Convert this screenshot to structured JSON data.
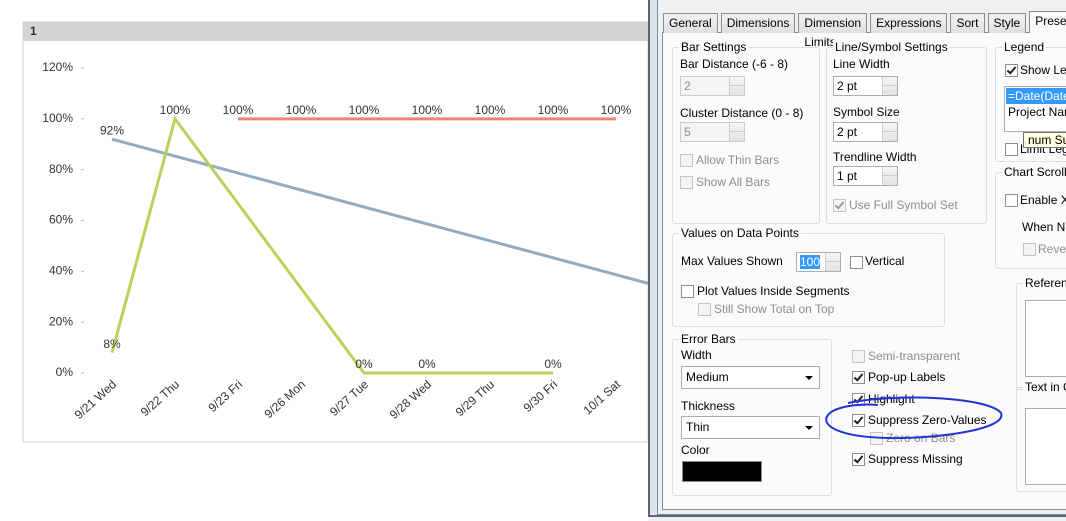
{
  "chart_data": {
    "type": "line",
    "title": "1",
    "categories": [
      "9/21 Wed",
      "9/22 Thu",
      "9/23 Fri",
      "9/26 Mon",
      "9/27 Tue",
      "9/28 Wed",
      "9/29 Thu",
      "9/30 Fri",
      "10/1 Sat",
      null
    ],
    "series": [
      {
        "color": "#f08278",
        "values": [
          null,
          null,
          100,
          100,
          100,
          100,
          100,
          100,
          100,
          null
        ],
        "value_labels": [
          null,
          null,
          "100%",
          "100%",
          "100%",
          "100%",
          "100%",
          "100%",
          "100%",
          null
        ]
      },
      {
        "color": "#93aac3",
        "values": [
          92,
          null,
          null,
          null,
          null,
          null,
          null,
          null,
          null,
          32
        ],
        "value_labels": [
          "92%",
          null,
          null,
          null,
          null,
          null,
          null,
          null,
          null,
          null
        ]
      },
      {
        "color": "#b9d35a",
        "values": [
          8,
          100,
          null,
          null,
          0,
          0,
          null,
          0,
          null,
          null
        ],
        "value_labels": [
          "8%",
          "100%",
          null,
          null,
          "0%",
          "0%",
          null,
          "0%",
          null,
          null
        ]
      }
    ],
    "ylim": [
      0,
      120
    ],
    "yticks": [
      {
        "value": 0,
        "label": "0%"
      },
      {
        "value": 20,
        "label": "20%"
      },
      {
        "value": 40,
        "label": "40%"
      },
      {
        "value": 60,
        "label": "60%"
      },
      {
        "value": 80,
        "label": "80%"
      },
      {
        "value": 100,
        "label": "100%"
      },
      {
        "value": 120,
        "label": "120%"
      }
    ],
    "grid": false
  },
  "dialog": {
    "tabs": [
      "General",
      "Dimensions",
      "Dimension Limits",
      "Expressions",
      "Sort",
      "Style",
      "Presenta"
    ],
    "bar_settings": {
      "title": "Bar Settings",
      "bar_distance_label": "Bar Distance (-6 - 8)",
      "bar_distance": "2",
      "cluster_distance_label": "Cluster Distance (0 - 8)",
      "cluster_distance": "5",
      "allow_thin_bars": "Allow Thin Bars",
      "show_all_bars": "Show All Bars"
    },
    "line_symbol": {
      "title": "Line/Symbol Settings",
      "line_width_label": "Line Width",
      "line_width": "2 pt",
      "symbol_size_label": "Symbol Size",
      "symbol_size": "2 pt",
      "trendline_width_label": "Trendline Width",
      "trendline_width": "1 pt",
      "use_full_symbol_set": "Use Full Symbol Set"
    },
    "legend": {
      "title": "Legend",
      "show_legend": "Show Leg",
      "items": [
        "=Date(Date,",
        "Project Nam"
      ],
      "tooltip": "num Su",
      "limit_legend": "Limit Lege"
    },
    "chart_scrolling": {
      "title": "Chart Scrollin",
      "enable_x": "Enable X-",
      "when_num": "When Nu",
      "reverse": "Rever"
    },
    "values_on_data_points": {
      "title": "Values on Data Points",
      "max_values_label": "Max Values Shown",
      "max_values": "100",
      "vertical": "Vertical",
      "plot_inside": "Plot Values Inside Segments",
      "still_show_total": "Still Show Total on Top"
    },
    "error_bars": {
      "title": "Error Bars",
      "width_label": "Width",
      "width": "Medium",
      "thickness_label": "Thickness",
      "thickness": "Thin",
      "color_label": "Color"
    },
    "options": [
      "Semi-transparent",
      "Pop-up Labels",
      "Highlight",
      "Suppress Zero-Values",
      "Zero on Bars",
      "Suppress Missing"
    ],
    "reference": {
      "title": "Referen"
    },
    "text_in_chart": {
      "title": "Text in C"
    }
  }
}
